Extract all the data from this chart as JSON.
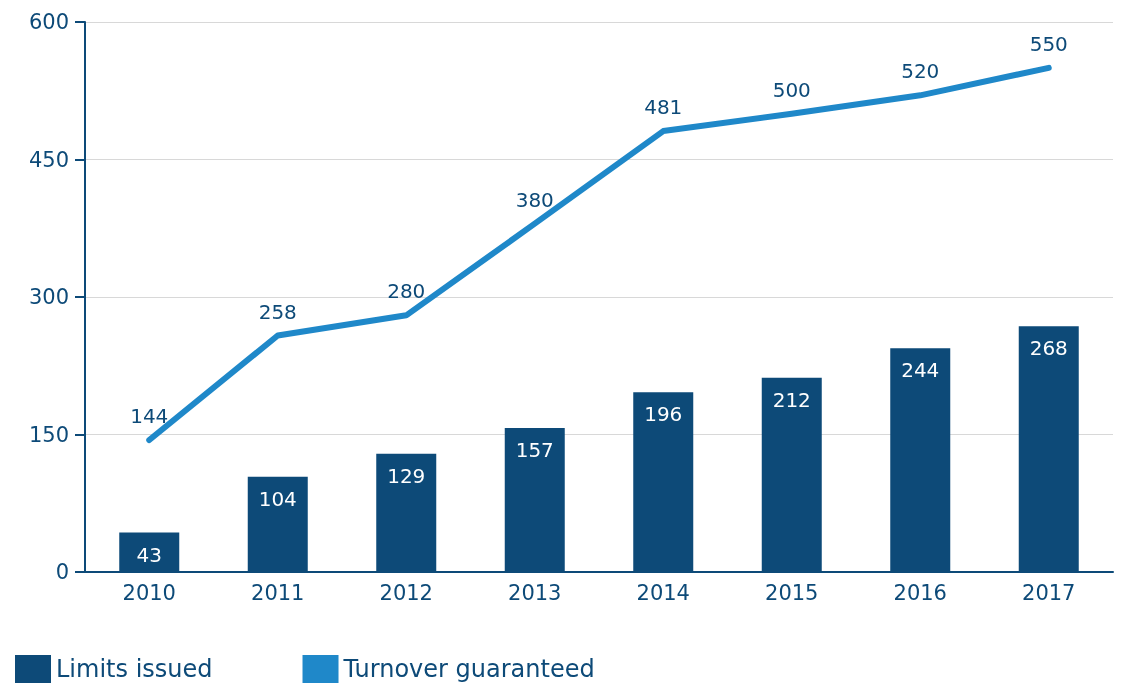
{
  "chart_data": {
    "type": "bar",
    "categories": [
      "2010",
      "2011",
      "2012",
      "2013",
      "2014",
      "2015",
      "2016",
      "2017"
    ],
    "series": [
      {
        "name": "Limits issued",
        "color": "#0d4a78",
        "values": [
          43,
          104,
          129,
          157,
          196,
          212,
          244,
          268
        ]
      },
      {
        "name": "Turnover guaranteed",
        "type": "line",
        "color": "#1f88c9",
        "values": [
          144,
          258,
          280,
          380,
          481,
          500,
          520,
          550
        ]
      }
    ],
    "ylim": [
      0,
      600
    ],
    "yticks": [
      0,
      150,
      300,
      450,
      600
    ],
    "grid": "y",
    "legend": "bottom left",
    "data_labels": true,
    "marker": "none",
    "line_style": "solid"
  }
}
